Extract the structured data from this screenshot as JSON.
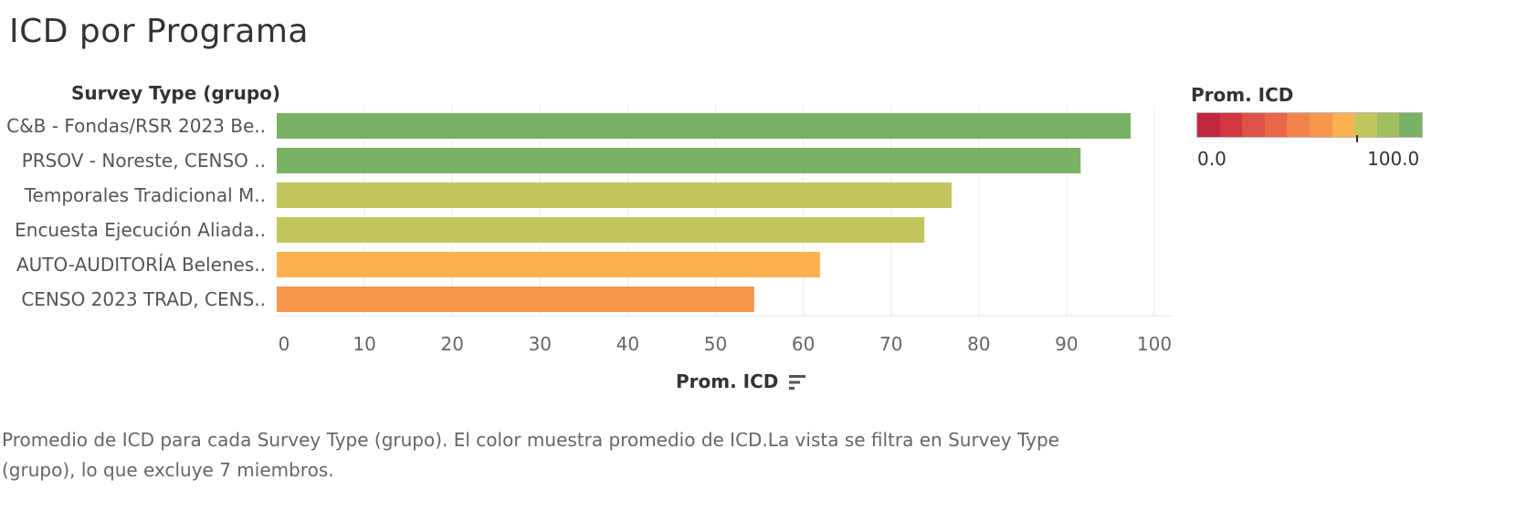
{
  "title": "ICD por Programa",
  "row_header": "Survey Type (grupo)",
  "chart_data": {
    "type": "bar",
    "orientation": "horizontal",
    "categories": [
      "C&B - Fondas/RSR 2023 Be..",
      "PRSOV - Noreste, CENSO ..",
      "Temporales Tradicional M..",
      "Encuesta Ejecución Aliada..",
      "AUTO-AUDITORÍA Belenes..",
      "CENSO 2023 TRAD, CENS.."
    ],
    "values": [
      97.3,
      91.6,
      76.9,
      73.8,
      61.9,
      54.4
    ],
    "colors": [
      "#79b263",
      "#79b263",
      "#c2c75d",
      "#c2c75d",
      "#fbb150",
      "#f8964d"
    ],
    "xlim": [
      0,
      100
    ],
    "xticks": [
      0,
      10,
      20,
      30,
      40,
      50,
      60,
      70,
      80,
      90,
      100
    ],
    "xlabel": "Prom. ICD",
    "grid": true
  },
  "legend": {
    "title": "Prom. ICD",
    "min_label": "0.0",
    "max_label": "100.0",
    "marker_value": 70,
    "swatches": [
      "#c1273d",
      "#d0373f",
      "#df5346",
      "#ea6749",
      "#f2834a",
      "#f8964d",
      "#fbb150",
      "#c2c75d",
      "#9fbe5f",
      "#79b263"
    ]
  },
  "icons": {
    "sort": "sort-descending-icon"
  },
  "caption": "Promedio de ICD para cada Survey Type (grupo). El color muestra promedio de ICD.La vista se filtra en Survey Type (grupo), lo que excluye 7 miembros."
}
